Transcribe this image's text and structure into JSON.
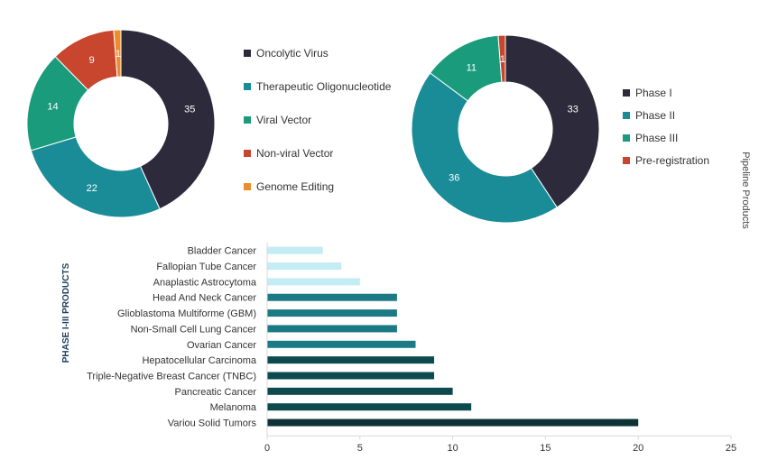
{
  "chart_data": [
    {
      "type": "pie",
      "donut": true,
      "categories": [
        "Oncolytic Virus",
        "Therapeutic Oligonucleotide",
        "Viral Vector",
        "Non-viral Vector",
        "Genome Editing"
      ],
      "values": [
        35,
        22,
        14,
        9,
        1
      ],
      "colors": [
        "#2c2a3b",
        "#1a8c97",
        "#1a9c7c",
        "#c8452e",
        "#ef8c2a"
      ],
      "legend_position": "right"
    },
    {
      "type": "pie",
      "donut": true,
      "categories": [
        "Phase I",
        "Phase II",
        "Phase III",
        "Pre-registration"
      ],
      "values": [
        33,
        36,
        11,
        1
      ],
      "colors": [
        "#2c2a3b",
        "#1a8c97",
        "#1a9c7c",
        "#c8452e"
      ],
      "legend_position": "right",
      "side_label": "Pipeline Products"
    },
    {
      "type": "bar",
      "orientation": "horizontal",
      "ylabel": "PHASE I-III PRODUCTS",
      "categories": [
        "Bladder Cancer",
        "Fallopian Tube Cancer",
        "Anaplastic Astrocytoma",
        "Head And Neck Cancer",
        "Glioblastoma Multiforme (GBM)",
        "Non-Small Cell Lung Cancer",
        "Ovarian Cancer",
        "Hepatocellular Carcinoma",
        "Triple-Negative Breast Cancer (TNBC)",
        "Pancreatic Cancer",
        "Melanoma",
        "Variou Solid Tumors"
      ],
      "values": [
        3,
        4,
        5,
        7,
        7,
        7,
        8,
        9,
        9,
        10,
        11,
        20
      ],
      "colors": [
        "#c4ecf4",
        "#c4ecf4",
        "#c4ecf4",
        "#1c7a84",
        "#1c7a84",
        "#1c7a84",
        "#1c7a84",
        "#0d4a4e",
        "#0d4a4e",
        "#0d4a4e",
        "#0d4a4e",
        "#0d3337"
      ],
      "xlim": [
        0,
        25
      ],
      "xticks": [
        0,
        5,
        10,
        15,
        20,
        25
      ],
      "grid": false
    }
  ]
}
